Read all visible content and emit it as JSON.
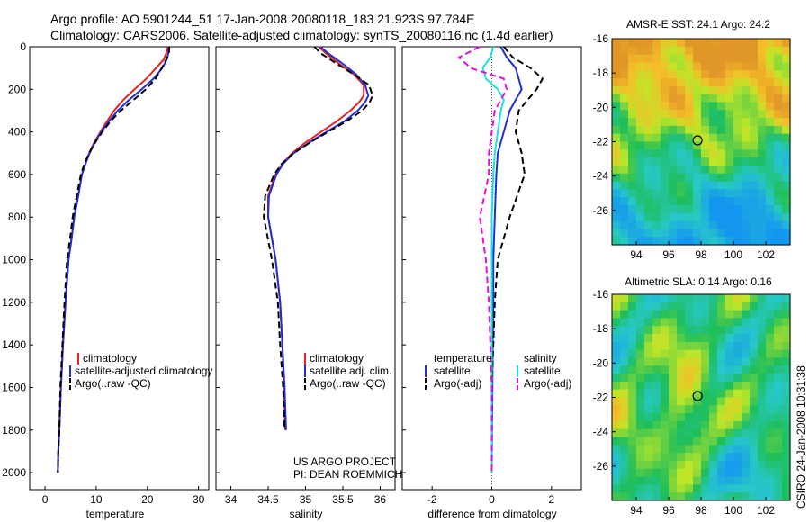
{
  "header": {
    "line1": "Argo profile: AO 5901244_51 17-Jan-2008 20080118_183 21.923S 97.784E",
    "line2": "Climatology: CARS2006. Satellite-adjusted climatology: synTS_20080116.nc (1.4d earlier)"
  },
  "colors": {
    "climatology": "#e8201e",
    "satellite": "#1f2fd6",
    "argo": "#000000",
    "salinity_satellite": "#19e3e3",
    "salinity_argo": "#e011e0"
  },
  "chart_data": [
    {
      "type": "line",
      "id": "temperature",
      "xlabel": "temperature",
      "ylabel": "",
      "xlim": [
        -3,
        32
      ],
      "ylim": [
        2080,
        0
      ],
      "xticks": [
        0,
        10,
        20,
        30
      ],
      "yticks": [
        0,
        200,
        400,
        600,
        800,
        1000,
        1200,
        1400,
        1600,
        1800,
        2000
      ],
      "legend": [
        "climatology",
        "satellite-adjusted climatology",
        "Argo(..raw -QC)"
      ],
      "series": [
        {
          "name": "climatology",
          "color": "red",
          "dash": false,
          "x": [
            24.0,
            23.7,
            23.2,
            21.7,
            19.8,
            17.5,
            15.3,
            13.5,
            12.1,
            10.8,
            9.6,
            8.6,
            7.9,
            7.2,
            6.5,
            5.7,
            5.2,
            4.6,
            4.0,
            3.5,
            3.1,
            2.8,
            2.6,
            2.5
          ],
          "y": [
            0,
            30,
            60,
            100,
            150,
            200,
            250,
            300,
            350,
            400,
            450,
            500,
            550,
            600,
            700,
            800,
            900,
            1000,
            1200,
            1400,
            1600,
            1800,
            1900,
            2000
          ]
        },
        {
          "name": "satellite-adjusted climatology",
          "color": "blue",
          "dash": false,
          "x": [
            24.2,
            24.1,
            23.8,
            22.9,
            21.2,
            18.9,
            16.4,
            14.2,
            12.5,
            11.0,
            9.7,
            8.7,
            7.9,
            7.2,
            6.5,
            5.7,
            5.2,
            4.6,
            4.0,
            3.5,
            3.1,
            2.8,
            2.6,
            2.5
          ],
          "y": [
            0,
            30,
            60,
            100,
            150,
            200,
            250,
            300,
            350,
            400,
            450,
            500,
            550,
            600,
            700,
            800,
            900,
            1000,
            1200,
            1400,
            1600,
            1800,
            1900,
            2000
          ]
        },
        {
          "name": "Argo(..raw -QC)",
          "color": "black",
          "dash": true,
          "x": [
            24.3,
            24.2,
            23.7,
            22.8,
            21.6,
            19.7,
            17.3,
            14.8,
            12.8,
            11.2,
            9.8,
            8.6,
            7.7,
            7.0,
            6.2,
            5.4,
            4.9,
            4.3,
            3.8,
            3.4,
            3.0,
            2.8,
            2.6,
            2.5
          ],
          "y": [
            0,
            30,
            60,
            100,
            150,
            200,
            250,
            300,
            350,
            400,
            450,
            500,
            550,
            600,
            700,
            800,
            900,
            1000,
            1200,
            1400,
            1600,
            1800,
            1900,
            2000
          ]
        }
      ]
    },
    {
      "type": "line",
      "id": "salinity",
      "xlabel": "salinity",
      "ylabel": "",
      "xlim": [
        33.8,
        36.2
      ],
      "ylim": [
        2080,
        0
      ],
      "xticks": [
        34,
        34.5,
        35,
        35.5,
        36
      ],
      "legend": [
        "climatology",
        "satellite adj. clim.",
        "Argo(..raw -QC)"
      ],
      "annotation": [
        "US ARGO PROJECT",
        "PI: DEAN ROEMMICH"
      ],
      "series": [
        {
          "name": "climatology",
          "color": "red",
          "dash": false,
          "x": [
            35.18,
            35.27,
            35.45,
            35.65,
            35.78,
            35.78,
            35.72,
            35.6,
            35.42,
            35.21,
            35.0,
            34.82,
            34.69,
            34.6,
            34.5,
            34.5,
            34.6,
            34.66,
            34.69,
            34.71,
            34.73
          ],
          "y": [
            0,
            30,
            80,
            130,
            180,
            230,
            260,
            300,
            350,
            400,
            450,
            500,
            550,
            600,
            700,
            800,
            1000,
            1200,
            1400,
            1600,
            1800
          ]
        },
        {
          "name": "satellite adj. clim.",
          "color": "blue",
          "dash": false,
          "x": [
            35.2,
            35.3,
            35.5,
            35.68,
            35.8,
            35.84,
            35.8,
            35.7,
            35.52,
            35.28,
            35.05,
            34.84,
            34.7,
            34.61,
            34.51,
            34.5,
            34.6,
            34.66,
            34.69,
            34.72,
            34.74
          ],
          "y": [
            0,
            30,
            80,
            130,
            180,
            230,
            260,
            300,
            350,
            400,
            450,
            500,
            550,
            600,
            700,
            800,
            1000,
            1200,
            1400,
            1600,
            1800
          ]
        },
        {
          "name": "Argo(..raw -QC)",
          "color": "black",
          "dash": true,
          "x": [
            35.12,
            35.2,
            35.42,
            35.65,
            35.85,
            35.9,
            35.86,
            35.76,
            35.55,
            35.3,
            35.06,
            34.84,
            34.68,
            34.58,
            34.46,
            34.44,
            34.55,
            34.63,
            34.66,
            34.7,
            34.72
          ],
          "y": [
            0,
            30,
            80,
            130,
            180,
            230,
            260,
            300,
            350,
            400,
            450,
            500,
            550,
            600,
            700,
            800,
            1000,
            1200,
            1400,
            1600,
            1800
          ]
        }
      ]
    },
    {
      "type": "line",
      "id": "difference",
      "xlabel": "difference from climatology",
      "ylabel": "",
      "xlim": [
        -3,
        3
      ],
      "ylim": [
        2080,
        0
      ],
      "xticks": [
        -2,
        0,
        2
      ],
      "legend_groups": [
        {
          "title": "temperature",
          "entries": [
            "satellite",
            "Argo(-adj)"
          ]
        },
        {
          "title": "salinity",
          "entries": [
            "satellite",
            "Argo(-adj)"
          ]
        }
      ],
      "series": [
        {
          "name": "temperature satellite",
          "color": "blue",
          "dash": false,
          "x": [
            0.3,
            0.5,
            0.8,
            0.9,
            1.0,
            0.8,
            0.6,
            0.4,
            0.2,
            0.15,
            0.1,
            0.05,
            0.05,
            0.03,
            0.02,
            0.01,
            0.0
          ],
          "y": [
            0,
            50,
            100,
            150,
            200,
            250,
            300,
            400,
            500,
            600,
            800,
            1000,
            1200,
            1400,
            1600,
            1800,
            2000
          ]
        },
        {
          "name": "temperature Argo(-adj)",
          "color": "black",
          "dash": true,
          "x": [
            0.4,
            0.7,
            1.3,
            1.7,
            1.5,
            1.2,
            0.9,
            0.8,
            1.0,
            1.1,
            0.6,
            0.2,
            0.1,
            0.05,
            0.0,
            0.0,
            0.0
          ],
          "y": [
            0,
            50,
            100,
            150,
            200,
            250,
            300,
            400,
            500,
            600,
            800,
            1000,
            1200,
            1400,
            1600,
            1800,
            2000
          ]
        },
        {
          "name": "salinity satellite",
          "color": "cyan",
          "dash": false,
          "x": [
            0.05,
            -0.05,
            -0.3,
            -0.2,
            0.2,
            0.4,
            0.3,
            0.2,
            0.1,
            0.05,
            0.0,
            0.0,
            0.0,
            0.0,
            0.0,
            0.0,
            0.0
          ],
          "y": [
            0,
            50,
            100,
            150,
            200,
            250,
            300,
            400,
            500,
            600,
            800,
            1000,
            1200,
            1400,
            1600,
            1800,
            2000
          ]
        },
        {
          "name": "salinity Argo(-adj)",
          "color": "magenta",
          "dash": true,
          "x": [
            -0.4,
            -1.1,
            -0.7,
            0.4,
            0.5,
            0.3,
            0.1,
            0.0,
            -0.1,
            -0.1,
            -0.4,
            -0.2,
            -0.1,
            -0.05,
            0.0,
            0.0,
            0.0
          ],
          "y": [
            0,
            50,
            100,
            150,
            200,
            250,
            300,
            400,
            500,
            600,
            800,
            1000,
            1200,
            1400,
            1600,
            1800,
            2000
          ]
        }
      ]
    },
    {
      "type": "heatmap",
      "id": "sst",
      "title": "AMSR-E SST: 24.1 Argo: 24.2",
      "xlim": [
        92.5,
        103.5
      ],
      "ylim": [
        -28,
        -16
      ],
      "xticks": [
        94,
        96,
        98,
        100,
        102
      ],
      "yticks": [
        -16,
        -18,
        -20,
        -22,
        -24,
        -26
      ],
      "marker": {
        "lon": 97.784,
        "lat": -21.923
      }
    },
    {
      "type": "heatmap",
      "id": "sla",
      "title": "Altimetric SLA: 0.14 Argo: 0.16",
      "xlim": [
        92.5,
        103.5
      ],
      "ylim": [
        -28,
        -16
      ],
      "xticks": [
        94,
        96,
        98,
        100,
        102
      ],
      "yticks": [
        -16,
        -18,
        -20,
        -22,
        -24,
        -26
      ],
      "marker": {
        "lon": 97.784,
        "lat": -21.923
      }
    }
  ],
  "footer": {
    "credit": "CSIRO 24-Jan-2008 10:31:38"
  }
}
